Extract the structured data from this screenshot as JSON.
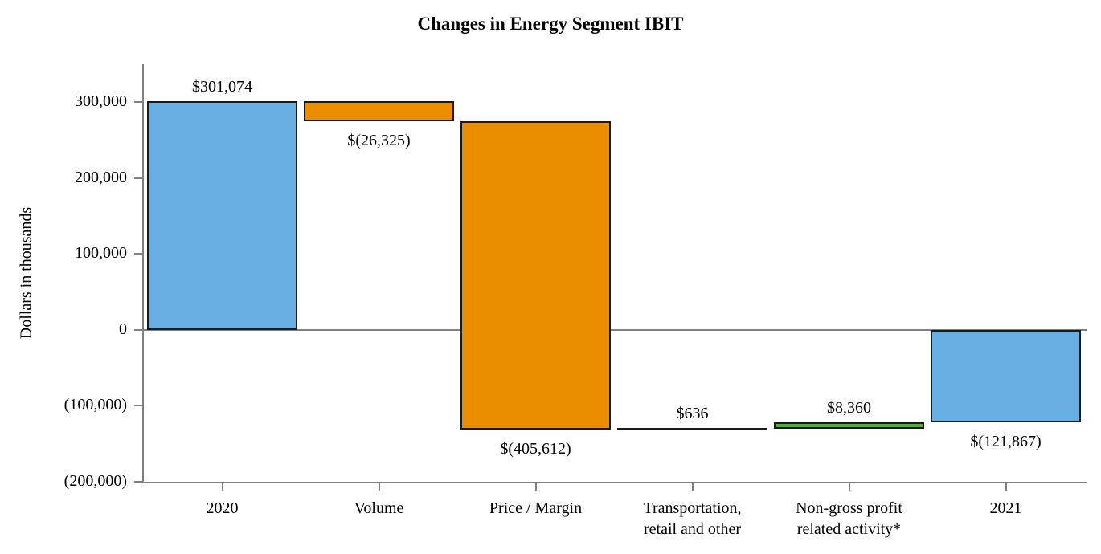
{
  "chart_data": {
    "type": "bar",
    "subtype": "waterfall",
    "title": "Changes in Energy Segment IBIT",
    "ylabel": "Dollars in thousands",
    "grid": false,
    "legend": "none",
    "categories": [
      {
        "label_lines": [
          "2020"
        ],
        "value": 301074,
        "bar_type": "total",
        "color": "#68AEE2",
        "data_label": "$301,074",
        "label_position": "above"
      },
      {
        "label_lines": [
          "Volume"
        ],
        "value": -26325,
        "bar_type": "delta",
        "color": "#EA8E00",
        "data_label": "$(26,325)",
        "label_position": "below"
      },
      {
        "label_lines": [
          "Price / Margin"
        ],
        "value": -405612,
        "bar_type": "delta",
        "color": "#EA8E00",
        "data_label": "$(405,612)",
        "label_position": "below"
      },
      {
        "label_lines": [
          "Transportation,",
          "retail and other"
        ],
        "value": 636,
        "bar_type": "delta",
        "color": "#1A1A1A",
        "data_label": "$636",
        "label_position": "above"
      },
      {
        "label_lines": [
          "Non-gross profit",
          "related activity*"
        ],
        "value": 8360,
        "bar_type": "delta",
        "color": "#4FAD35",
        "data_label": "$8,360",
        "label_position": "above"
      },
      {
        "label_lines": [
          "2021"
        ],
        "value": -121867,
        "bar_type": "total",
        "color": "#68AEE2",
        "data_label": "$(121,867)",
        "label_position": "below"
      }
    ],
    "y_axis": {
      "range": [
        -200000,
        350000
      ],
      "ticks": [
        {
          "value": 300000,
          "label": "300,000"
        },
        {
          "value": 200000,
          "label": "200,000"
        },
        {
          "value": 100000,
          "label": "100,000"
        },
        {
          "value": 0,
          "label": "0"
        },
        {
          "value": -100000,
          "label": "(100,000)"
        },
        {
          "value": -200000,
          "label": "(200,000)"
        }
      ]
    },
    "colors": {
      "bar_border": "#1A1A1A",
      "axis": "#808080",
      "text": "#000000",
      "background": "#FFFFFF"
    }
  }
}
